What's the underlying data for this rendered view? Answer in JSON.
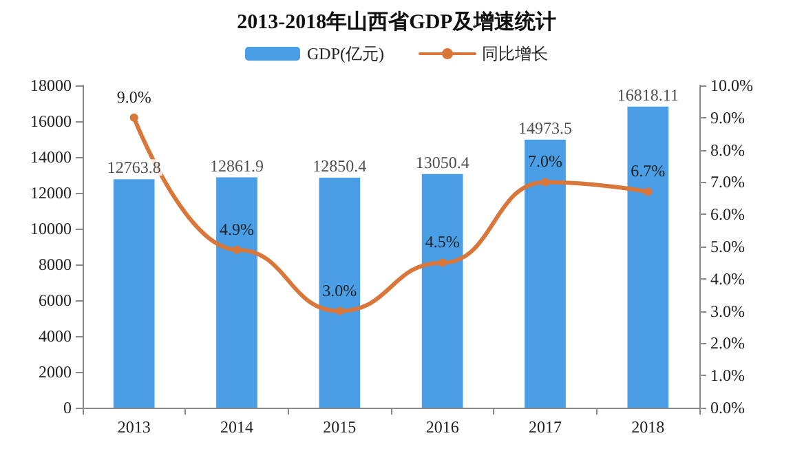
{
  "chart_data": {
    "type": "bar",
    "title": "2013-2018年山西省GDP及增速统计",
    "categories": [
      "2013",
      "2014",
      "2015",
      "2016",
      "2017",
      "2018"
    ],
    "series": [
      {
        "name": "GDP(亿元)",
        "color": "#4a9ee6",
        "values": [
          12763.8,
          12861.9,
          12850.4,
          13050.4,
          14973.5,
          16818.11
        ],
        "value_labels": [
          "12763.8",
          "12861.9",
          "12850.4",
          "13050.4",
          "14973.5",
          "16818.11"
        ]
      },
      {
        "name": "同比增长",
        "type": "line",
        "axis": "y2",
        "color": "#d9773a",
        "values": [
          9.0,
          4.9,
          3.0,
          4.5,
          7.0,
          6.7
        ],
        "value_labels": [
          "9.0%",
          "4.9%",
          "3.0%",
          "4.5%",
          "7.0%",
          "6.7%"
        ]
      }
    ],
    "ylim": [
      0,
      18000
    ],
    "yticks": [
      0,
      2000,
      4000,
      6000,
      8000,
      10000,
      12000,
      14000,
      16000,
      18000
    ],
    "y2lim": [
      0,
      10
    ],
    "y2ticks": [
      {
        "value": 0,
        "label": "0.0%"
      },
      {
        "value": 1,
        "label": "1.0%"
      },
      {
        "value": 2,
        "label": "2.0%"
      },
      {
        "value": 3,
        "label": "3.0%"
      },
      {
        "value": 4,
        "label": "4.0%"
      },
      {
        "value": 5,
        "label": "5.0%"
      },
      {
        "value": 6,
        "label": "6.0%"
      },
      {
        "value": 7,
        "label": "7.0%"
      },
      {
        "value": 8,
        "label": "8.0%"
      },
      {
        "value": 9,
        "label": "9.0%"
      },
      {
        "value": 10,
        "label": "10.0%"
      }
    ],
    "grid": false,
    "legend": "top",
    "marker": "circle",
    "line_style": "solid"
  }
}
